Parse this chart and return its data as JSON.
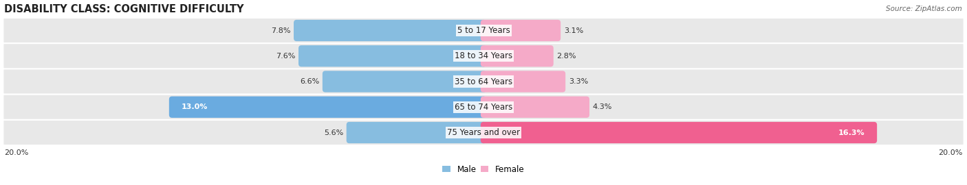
{
  "title": "DISABILITY CLASS: COGNITIVE DIFFICULTY",
  "source": "Source: ZipAtlas.com",
  "categories": [
    "5 to 17 Years",
    "18 to 34 Years",
    "35 to 64 Years",
    "65 to 74 Years",
    "75 Years and over"
  ],
  "male_values": [
    7.8,
    7.6,
    6.6,
    13.0,
    5.6
  ],
  "female_values": [
    3.1,
    2.8,
    3.3,
    4.3,
    16.3
  ],
  "male_color_normal": "#87bde0",
  "male_color_highlight": "#6aabe0",
  "female_color_normal": "#f5aac8",
  "female_color_highlight": "#f06090",
  "axis_max": 20.0,
  "axis_label": "20.0%",
  "background_color": "#ffffff",
  "row_bg_color": "#e8e8e8",
  "title_fontsize": 10.5,
  "label_fontsize": 8.5,
  "value_fontsize": 8.0,
  "male_highlight_idx": 3,
  "female_highlight_idx": 4
}
